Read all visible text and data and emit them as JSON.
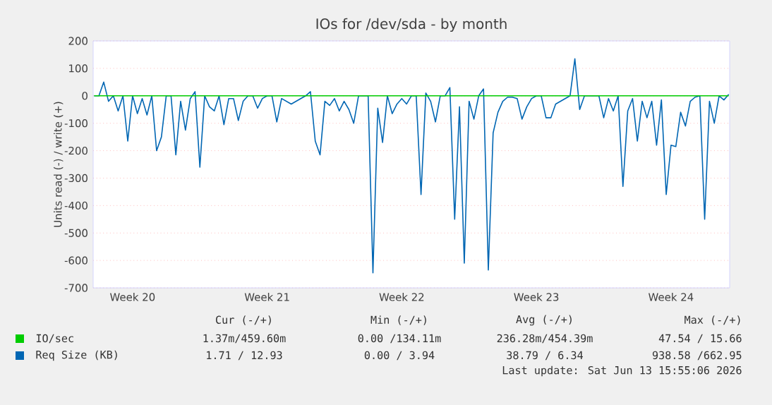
{
  "chart_data": {
    "type": "line",
    "title": "IOs for /dev/sda - by month",
    "ylabel": "Units read (-) / write (+)",
    "categories": [
      null,
      null,
      null,
      null,
      null,
      null,
      null,
      null,
      "Week 20",
      null,
      null,
      null,
      null,
      null,
      null,
      null,
      null,
      null,
      null,
      null,
      null,
      null,
      null,
      null,
      null,
      null,
      null,
      null,
      null,
      null,
      null,
      null,
      null,
      null,
      null,
      null,
      "Week 21",
      null,
      null,
      null,
      null,
      null,
      null,
      null,
      null,
      null,
      null,
      null,
      null,
      null,
      null,
      null,
      null,
      null,
      null,
      null,
      null,
      null,
      null,
      null,
      null,
      null,
      null,
      null,
      "Week 22",
      null,
      null,
      null,
      null,
      null,
      null,
      null,
      null,
      null,
      null,
      null,
      null,
      null,
      null,
      null,
      null,
      null,
      null,
      null,
      null,
      null,
      null,
      null,
      null,
      null,
      null,
      null,
      "Week 23",
      null,
      null,
      null,
      null,
      null,
      null,
      null,
      null,
      null,
      null,
      null,
      null,
      null,
      null,
      null,
      null,
      null,
      null,
      null,
      null,
      null,
      null,
      null,
      null,
      null,
      null,
      null,
      "Week 24",
      null,
      null,
      null,
      null,
      null,
      null,
      null,
      null,
      null,
      null,
      null,
      null
    ],
    "ylim": [
      -700,
      200
    ],
    "yticks": [
      -700,
      -600,
      -500,
      -400,
      -300,
      -200,
      -100,
      0,
      100,
      200
    ],
    "grid": "y",
    "legend": "bottom",
    "marker": "none",
    "line_style": "solid",
    "series": [
      {
        "name": "Req Size (KB)",
        "color": "#0066b3",
        "values": [
          0,
          0,
          50,
          -20,
          0,
          -55,
          0,
          -165,
          0,
          -65,
          -10,
          -70,
          0,
          -200,
          -150,
          0,
          0,
          -215,
          -20,
          -125,
          -10,
          15,
          -260,
          0,
          -40,
          -55,
          0,
          -105,
          -10,
          -10,
          -90,
          -20,
          0,
          0,
          -45,
          -10,
          0,
          0,
          -95,
          -10,
          -20,
          -30,
          -20,
          -10,
          0,
          15,
          -165,
          -215,
          -20,
          -35,
          -10,
          -55,
          -20,
          -50,
          -100,
          0,
          0,
          0,
          -645,
          -45,
          -170,
          0,
          -65,
          -30,
          -10,
          -30,
          0,
          0,
          -360,
          10,
          -20,
          -95,
          0,
          0,
          30,
          -450,
          -40,
          -610,
          -20,
          -85,
          0,
          25,
          -635,
          -135,
          -60,
          -20,
          -5,
          -5,
          -10,
          -85,
          -40,
          -10,
          0,
          0,
          -80,
          -80,
          -30,
          -20,
          -10,
          0,
          135,
          -50,
          0,
          0,
          0,
          0,
          -80,
          -10,
          -55,
          0,
          -330,
          -55,
          -10,
          -165,
          -20,
          -80,
          -20,
          -180,
          -15,
          -360,
          -180,
          -185,
          -60,
          -110,
          -20,
          -5,
          0,
          -450,
          -20,
          -100,
          0,
          -15,
          5
        ]
      },
      {
        "name": "IO/sec",
        "color": "#00cc00",
        "values": [
          0,
          0,
          0,
          0,
          0,
          0,
          0,
          0,
          0,
          0,
          0,
          0,
          0,
          0,
          0,
          0,
          0,
          0,
          0,
          0,
          0,
          0,
          0,
          0,
          0,
          0,
          0,
          0,
          0,
          0,
          0,
          0,
          0,
          0,
          0,
          0,
          0,
          0,
          0,
          0,
          0,
          0,
          0,
          0,
          0,
          0,
          0,
          0,
          0,
          0,
          0,
          0,
          0,
          0,
          0,
          0,
          0,
          0,
          0,
          0,
          0,
          0,
          0,
          0,
          0,
          0,
          0,
          0,
          0,
          0,
          0,
          0,
          0,
          0,
          0,
          0,
          0,
          0,
          0,
          0,
          0,
          0,
          0,
          0,
          0,
          0,
          0,
          0,
          0,
          0,
          0,
          0,
          0,
          0,
          0,
          0,
          0,
          0,
          0,
          0,
          0,
          0,
          0,
          0,
          0,
          0,
          0,
          0,
          0,
          0,
          0,
          0,
          0,
          0,
          0,
          0,
          0,
          0,
          0,
          0,
          0,
          0,
          0,
          0,
          0,
          0,
          0,
          0,
          0,
          0,
          0,
          0,
          0
        ]
      }
    ],
    "annotations": [
      "Cur (-/+)",
      "Min (-/+)",
      "Avg (-/+)",
      "Max (-/+)",
      "1.37m/459.60m",
      "0.00 /134.11m",
      "236.28m/454.39m",
      "47.54 / 15.66",
      "1.71 / 12.93",
      "0.00 /  3.94",
      "38.79 /  6.34",
      "938.58 /662.95",
      "Last update: Sat Jun 13 15:55:06 2026"
    ]
  }
}
